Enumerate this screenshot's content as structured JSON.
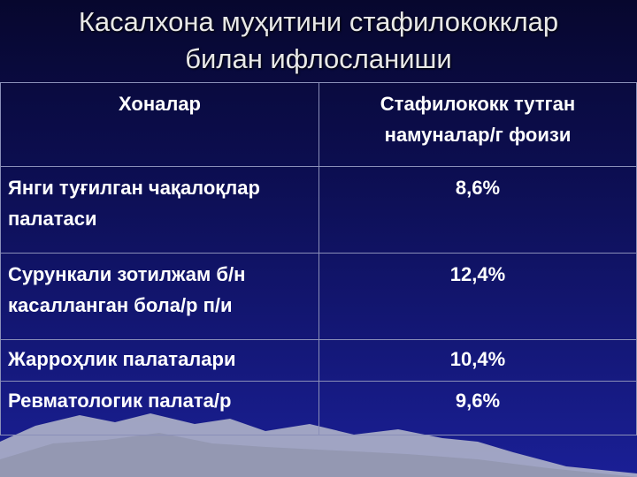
{
  "slide": {
    "title_lines": [
      "Касалхона муҳитини стафилококклар",
      "билан ифлосланиши"
    ],
    "table": {
      "header": [
        "Хоналар",
        "Стафилококк тутган намуналар/г фоизи"
      ],
      "rows": [
        [
          "Янги туғилган чақалоқлар палатаси",
          "8,6%"
        ],
        [
          "Сурункали зотилжам б/н касалланган бола/р п/и",
          "12,4%"
        ],
        [
          "Жарроҳлик палаталари",
          "10,4%"
        ],
        [
          "Ревматологик палата/р",
          "9,6%"
        ]
      ]
    }
  }
}
